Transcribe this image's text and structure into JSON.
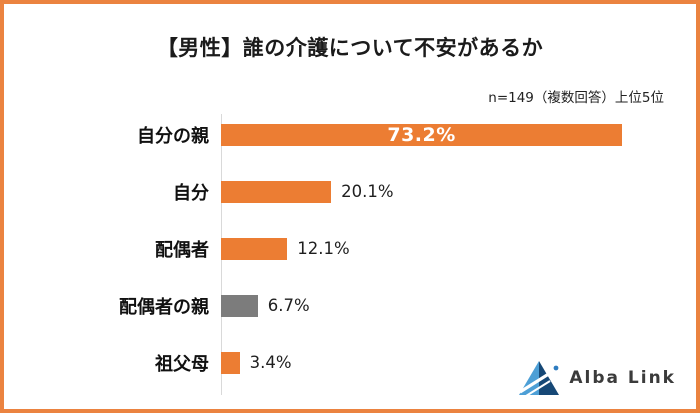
{
  "chart_data": {
    "type": "bar",
    "orientation": "horizontal",
    "title": "【男性】誰の介護について不安があるか",
    "subtitle": "n=149（複数回答）上位5位",
    "categories": [
      "自分の親",
      "自分",
      "配偶者",
      "配偶者の親",
      "祖父母"
    ],
    "values": [
      73.2,
      20.1,
      12.1,
      6.7,
      3.4
    ],
    "value_labels": [
      "73.2%",
      "20.1%",
      "12.1%",
      "6.7%",
      "3.4%"
    ],
    "bar_colors": [
      "#EC7D33",
      "#EC7D33",
      "#EC7D33",
      "#7C7C7C",
      "#EC7D33"
    ],
    "xlim": [
      0,
      80
    ],
    "grid": false,
    "legend": false,
    "axis_line_color": "#D9D9D9"
  },
  "branding": {
    "logo_text": "Alba Link",
    "logo_icon": "triangle-mountain-icon",
    "logo_colors": {
      "light_blue": "#4D9FD6",
      "dark_blue": "#164876",
      "dot_blue": "#2E7CC0",
      "text": "#3B3B3B"
    }
  },
  "frame": {
    "border_color": "#EB8340"
  }
}
